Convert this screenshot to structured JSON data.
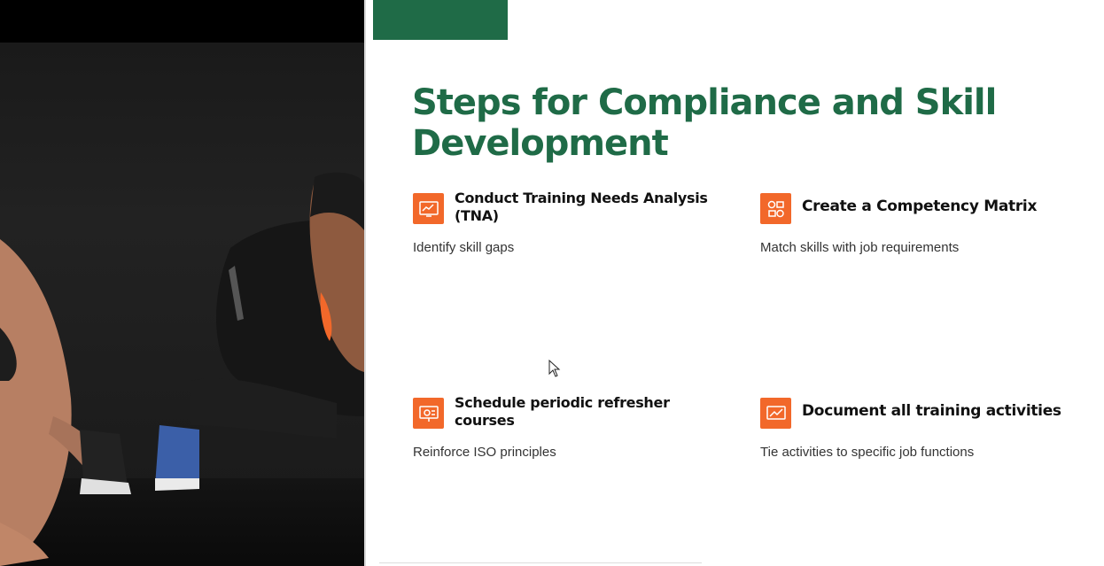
{
  "slide": {
    "title": "Steps for Compliance and Skill Development",
    "accent_color": "#1f6b47",
    "icon_color": "#f2682a",
    "steps": [
      {
        "title": "Conduct Training Needs Analysis (TNA)",
        "description": "Identify skill gaps",
        "icon": "analysis-chart-icon"
      },
      {
        "title": "Create a Competency Matrix",
        "description": "Match skills with job requirements",
        "icon": "matrix-icon"
      },
      {
        "title": "Schedule periodic refresher courses",
        "description": "Reinforce ISO principles",
        "icon": "presentation-icon"
      },
      {
        "title": "Document all training activities",
        "description": "Tie activities to specific job functions",
        "icon": "trend-chart-icon"
      }
    ]
  },
  "photo": {
    "icon": "athletes-photo"
  }
}
